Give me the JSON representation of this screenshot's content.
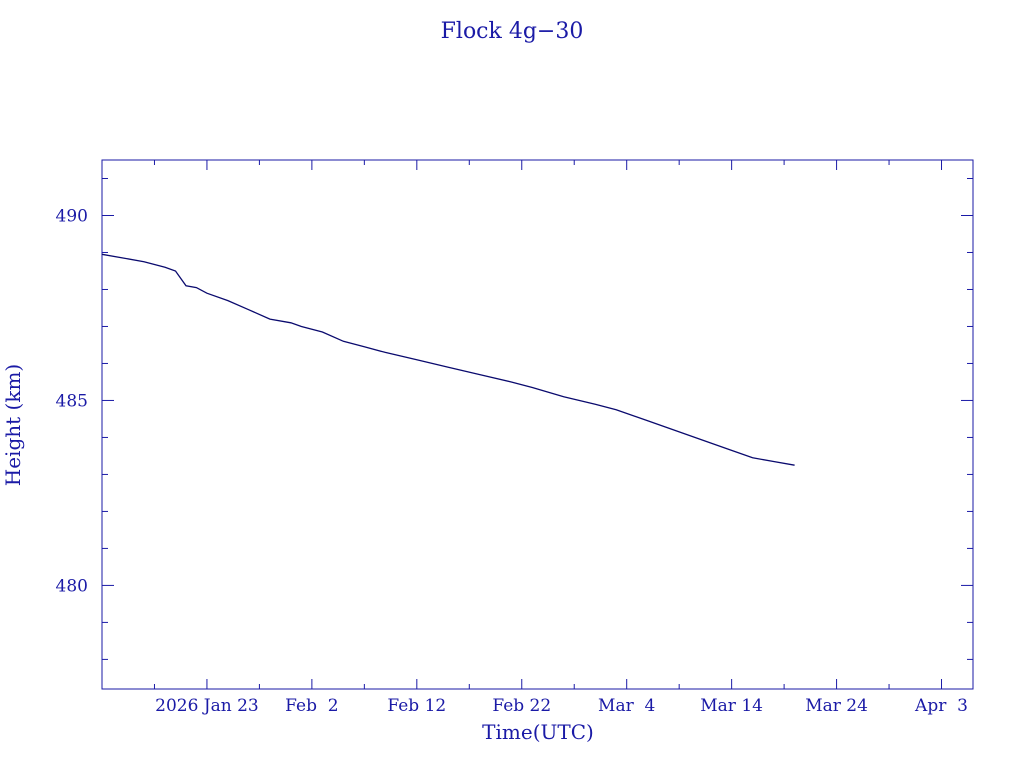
{
  "chart_data": {
    "type": "line",
    "title": "Flock 4g−30",
    "xlabel": "Time(UTC)",
    "ylabel": "Height (km)",
    "xlim": [
      "2026-01-13",
      "2026-04-06"
    ],
    "ylim": [
      477.2,
      491.5
    ],
    "x_ticks": [
      {
        "date": "2026-01-23",
        "label": "2026 Jan 23"
      },
      {
        "date": "2026-02-02",
        "label": "Feb  2"
      },
      {
        "date": "2026-02-12",
        "label": "Feb 12"
      },
      {
        "date": "2026-02-22",
        "label": "Feb 22"
      },
      {
        "date": "2026-03-04",
        "label": "Mar  4"
      },
      {
        "date": "2026-03-14",
        "label": "Mar 14"
      },
      {
        "date": "2026-03-24",
        "label": "Mar 24"
      },
      {
        "date": "2026-04-03",
        "label": "Apr  3"
      }
    ],
    "y_ticks": [
      {
        "value": 480,
        "label": "480"
      },
      {
        "value": 485,
        "label": "485"
      },
      {
        "value": 490,
        "label": "490"
      }
    ],
    "grid": false,
    "legend": "none",
    "colors": {
      "line": "#0a0a6e",
      "text": "#1a1aa6",
      "axis": "#1a1aa6"
    },
    "series": [
      {
        "x": [
          "2026-01-13",
          "2026-01-15",
          "2026-01-17",
          "2026-01-19",
          "2026-01-20",
          "2026-01-21",
          "2026-01-22",
          "2026-01-23",
          "2026-01-25",
          "2026-01-27",
          "2026-01-29",
          "2026-01-31",
          "2026-02-01",
          "2026-02-03",
          "2026-02-05",
          "2026-02-07",
          "2026-02-09",
          "2026-02-12",
          "2026-02-15",
          "2026-02-18",
          "2026-02-21",
          "2026-02-23",
          "2026-02-26",
          "2026-03-01",
          "2026-03-03",
          "2026-03-06",
          "2026-03-09",
          "2026-03-12",
          "2026-03-14",
          "2026-03-16",
          "2026-03-18",
          "2026-03-20"
        ],
        "values": [
          488.95,
          488.85,
          488.75,
          488.6,
          488.5,
          488.1,
          488.05,
          487.9,
          487.7,
          487.45,
          487.2,
          487.1,
          487.0,
          486.85,
          486.6,
          486.45,
          486.3,
          486.1,
          485.9,
          485.7,
          485.5,
          485.35,
          485.1,
          484.9,
          484.75,
          484.45,
          484.15,
          483.85,
          483.65,
          483.45,
          483.35,
          483.25
        ]
      }
    ]
  }
}
